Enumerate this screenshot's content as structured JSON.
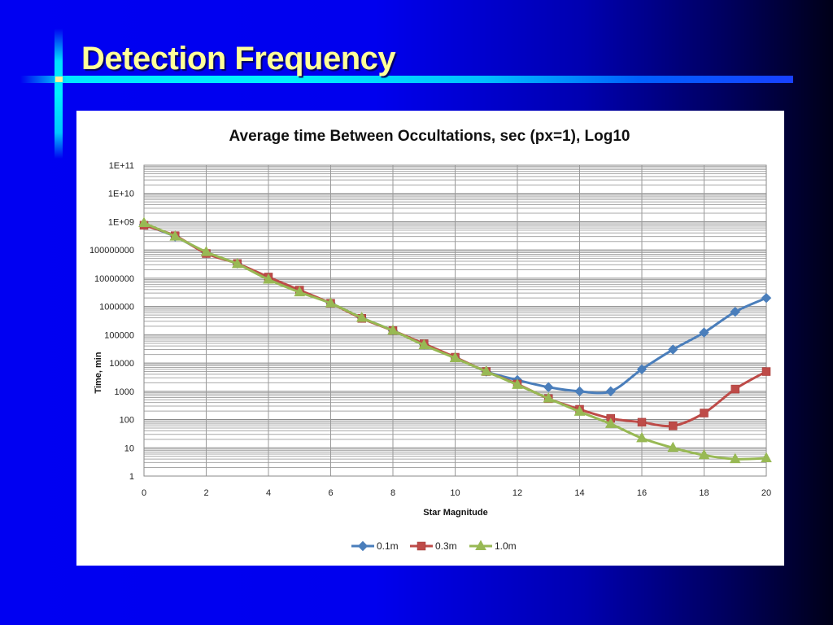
{
  "slide": {
    "title": "Detection Frequency"
  },
  "colors": {
    "title_text": "#ffff99",
    "accent_line": "#00f0ff",
    "series_0_1m": "#4a7ebb",
    "series_0_3m": "#be4b48",
    "series_1_0m": "#98b954"
  },
  "chart_data": {
    "type": "line",
    "title": "Average time Between Occultations, sec (px=1), Log10",
    "xlabel": "Star Magnitude",
    "ylabel": "Time, min",
    "xlim": [
      0,
      20
    ],
    "ylim": [
      1,
      100000000000
    ],
    "yscale": "log10",
    "grid": true,
    "legend_position": "bottom",
    "x_ticks": [
      "0",
      "2",
      "4",
      "6",
      "8",
      "10",
      "12",
      "14",
      "16",
      "18",
      "20"
    ],
    "y_ticks": [
      "1",
      "10",
      "100",
      "1000",
      "10000",
      "100000",
      "1000000",
      "10000000",
      "100000000",
      "1E+09",
      "1E+10",
      "1E+11"
    ],
    "x": [
      0,
      1,
      2,
      3,
      4,
      5,
      6,
      7,
      8,
      9,
      10,
      11,
      12,
      13,
      14,
      15,
      16,
      17,
      18,
      19,
      20
    ],
    "series": [
      {
        "name": "0.1m",
        "marker": "diamond",
        "values": [
          800000000,
          300000000,
          80000000,
          33000000,
          10000000,
          3500000,
          1300000,
          400000,
          140000,
          45000,
          16000,
          5000,
          2500,
          1400,
          1000,
          1000,
          6000,
          30000,
          120000,
          650000,
          2000000
        ]
      },
      {
        "name": "0.3m",
        "marker": "square",
        "values": [
          750000000,
          320000000,
          75000000,
          33000000,
          11000000,
          3800000,
          1300000,
          380000,
          140000,
          48000,
          16000,
          5000,
          1800,
          550,
          230,
          110,
          80,
          60,
          170,
          1200,
          5000
        ]
      },
      {
        "name": "1.0m",
        "marker": "triangle",
        "values": [
          900000000,
          300000000,
          85000000,
          32000000,
          9000000,
          3200000,
          1300000,
          400000,
          140000,
          43000,
          15000,
          5000,
          1700,
          560,
          190,
          70,
          22,
          10,
          5.5,
          4,
          4.3
        ]
      }
    ]
  }
}
